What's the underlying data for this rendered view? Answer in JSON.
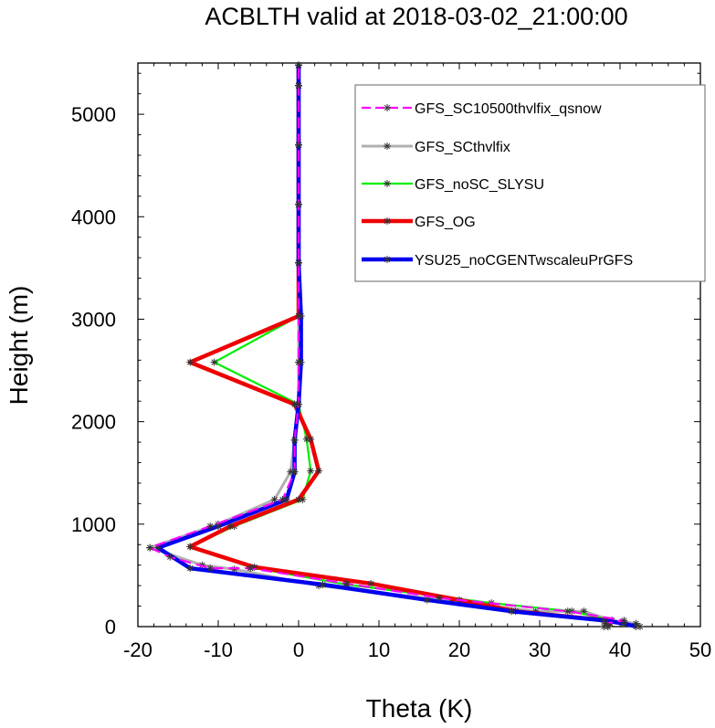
{
  "chart_data": {
    "type": "line",
    "title": "ACBLTH valid at 2018-03-02_21:00:00",
    "xlabel": "Theta (K)",
    "ylabel": "Height (m)",
    "xlim": [
      -20,
      50
    ],
    "ylim": [
      0,
      5500
    ],
    "x_ticks": [
      "-20",
      "-10",
      "0",
      "10",
      "20",
      "30",
      "40",
      "50"
    ],
    "y_ticks": [
      "0",
      "1000",
      "2000",
      "3000",
      "4000",
      "5000"
    ],
    "legend_position": "top-right",
    "series": [
      {
        "name": "GFS_SC10500thvlfix_qsnow",
        "color": "#ff00ff",
        "dash": "dashed",
        "points": [
          [
            38.5,
            0
          ],
          [
            38.2,
            30
          ],
          [
            40.5,
            60
          ],
          [
            33.5,
            150
          ],
          [
            17.5,
            280
          ],
          [
            6,
            420
          ],
          [
            -6,
            570
          ],
          [
            -11,
            570
          ],
          [
            -16,
            680
          ],
          [
            -18.5,
            770
          ],
          [
            -11,
            980
          ],
          [
            -2,
            1240
          ],
          [
            -0.5,
            1510
          ],
          [
            -0.5,
            1820
          ],
          [
            0,
            2170
          ],
          [
            0,
            2580
          ],
          [
            0,
            3030
          ],
          [
            0,
            3550
          ],
          [
            0,
            4120
          ],
          [
            0,
            4700
          ],
          [
            0,
            5280
          ],
          [
            0,
            5480
          ]
        ]
      },
      {
        "name": "GFS_SCthvlfix",
        "color": "#b0b0b0",
        "dash": "solid",
        "points": [
          [
            42.5,
            0
          ],
          [
            42,
            30
          ],
          [
            39,
            60
          ],
          [
            35.5,
            150
          ],
          [
            29.5,
            150
          ],
          [
            19,
            250
          ],
          [
            2.5,
            400
          ],
          [
            -8,
            560
          ],
          [
            -12,
            600
          ],
          [
            -18.5,
            770
          ],
          [
            -10,
            1000
          ],
          [
            -3,
            1240
          ],
          [
            -1,
            1510
          ],
          [
            -0.5,
            1820
          ],
          [
            0,
            2170
          ],
          [
            0,
            2580
          ],
          [
            0,
            3030
          ],
          [
            0,
            3550
          ],
          [
            0,
            4120
          ],
          [
            0,
            4700
          ],
          [
            0,
            5280
          ],
          [
            0,
            5480
          ]
        ]
      },
      {
        "name": "GFS_noSC_SLYSU",
        "color": "#00ee00",
        "dash": "solid",
        "points": [
          [
            38,
            0
          ],
          [
            38.5,
            30
          ],
          [
            39,
            60
          ],
          [
            34,
            150
          ],
          [
            24,
            230
          ],
          [
            6,
            410
          ],
          [
            -6,
            580
          ],
          [
            -13.5,
            780
          ],
          [
            -8,
            980
          ],
          [
            0.5,
            1240
          ],
          [
            1.5,
            1520
          ],
          [
            1,
            1830
          ],
          [
            0,
            2170
          ],
          [
            -10.5,
            2580
          ],
          [
            0,
            3030
          ],
          [
            0,
            3550
          ],
          [
            0,
            4120
          ],
          [
            0,
            4700
          ],
          [
            0,
            5280
          ],
          [
            0,
            5480
          ]
        ]
      },
      {
        "name": "GFS_OG",
        "color": "#ee0000",
        "dash": "solid",
        "points": [
          [
            38.5,
            0
          ],
          [
            38.8,
            30
          ],
          [
            38.5,
            60
          ],
          [
            27,
            150
          ],
          [
            20,
            260
          ],
          [
            9,
            420
          ],
          [
            -5.5,
            580
          ],
          [
            -13.5,
            780
          ],
          [
            -8.5,
            980
          ],
          [
            0,
            1240
          ],
          [
            2.5,
            1520
          ],
          [
            1.5,
            1830
          ],
          [
            -0.5,
            2170
          ],
          [
            -13.5,
            2580
          ],
          [
            0,
            3030
          ],
          [
            0,
            3550
          ],
          [
            0,
            4120
          ],
          [
            0,
            4700
          ],
          [
            0,
            5280
          ],
          [
            0,
            5480
          ]
        ]
      },
      {
        "name": "YSU25_noCGENTwscaleuPrGFS",
        "color": "#0000ee",
        "dash": "solid",
        "points": [
          [
            42,
            0
          ],
          [
            40.5,
            30
          ],
          [
            38,
            60
          ],
          [
            26.5,
            150
          ],
          [
            16,
            260
          ],
          [
            3,
            410
          ],
          [
            -13.5,
            570
          ],
          [
            -17.5,
            770
          ],
          [
            -10,
            980
          ],
          [
            -1.5,
            1240
          ],
          [
            -0.5,
            1510
          ],
          [
            -0.5,
            1820
          ],
          [
            0,
            2170
          ],
          [
            0.3,
            2580
          ],
          [
            0.3,
            3030
          ],
          [
            0,
            3550
          ],
          [
            0,
            4120
          ],
          [
            0,
            4700
          ],
          [
            0,
            5280
          ],
          [
            0,
            5480
          ]
        ]
      }
    ]
  }
}
